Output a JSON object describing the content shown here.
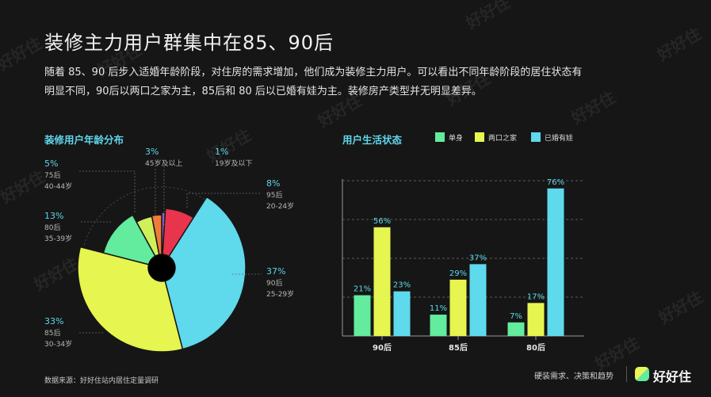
{
  "title": "装修主力用户群集中在85、90后",
  "description": "随着 85、90 后步入适婚年龄阶段，对住房的需求增加，他们成为装修主力用户。可以看出不同年龄阶段的居住状态有明显不同，90后以两口之家为主，85后和 80 后以已婚有娃为主。装修房产类型并无明显差异。",
  "source": "数据来源：好好住站内居住定量调研",
  "brand": {
    "tagline": "硬装需求、决策和趋势",
    "logo_text": "好好住"
  },
  "watermark": "好好住",
  "colors": {
    "green": "#63eb9e",
    "yellow": "#e6f54f",
    "cyan": "#5fd9ec",
    "red": "#e8344c",
    "orange": "#f07b3a",
    "purple": "#8a63d6"
  },
  "chart_data": [
    {
      "type": "pie",
      "title": "装修用户年龄分布",
      "slices": [
        {
          "pct": "1%",
          "value": 1,
          "group": "19岁及以下",
          "range": "",
          "color": "#8a63d6"
        },
        {
          "pct": "8%",
          "value": 8,
          "group": "95后",
          "range": "20-24岁",
          "color": "#e8344c"
        },
        {
          "pct": "37%",
          "value": 37,
          "group": "90后",
          "range": "25-29岁",
          "color": "#5fd9ec"
        },
        {
          "pct": "33%",
          "value": 33,
          "group": "85后",
          "range": "30-34岁",
          "color": "#e6f54f"
        },
        {
          "pct": "13%",
          "value": 13,
          "group": "80后",
          "range": "35-39岁",
          "color": "#63eb9e"
        },
        {
          "pct": "5%",
          "value": 5,
          "group": "75后",
          "range": "40-44岁",
          "color": "#d0f05a"
        },
        {
          "pct": "3%",
          "value": 3,
          "group": "45岁及以上",
          "range": "",
          "color": "#f07b3a"
        }
      ]
    },
    {
      "type": "bar",
      "title": "用户生活状态",
      "categories": [
        "90后",
        "85后",
        "80后"
      ],
      "ylim": [
        0,
        80
      ],
      "series": [
        {
          "name": "单身",
          "color": "#63eb9e",
          "values": [
            21,
            11,
            7
          ],
          "labels": [
            "21%",
            "11%",
            "7%"
          ]
        },
        {
          "name": "两口之家",
          "color": "#e6f54f",
          "values": [
            56,
            29,
            17
          ],
          "labels": [
            "56%",
            "29%",
            "17%"
          ]
        },
        {
          "name": "已婚有娃",
          "color": "#5fd9ec",
          "values": [
            23,
            37,
            76
          ],
          "labels": [
            "23%",
            "37%",
            "76%"
          ]
        }
      ]
    }
  ]
}
